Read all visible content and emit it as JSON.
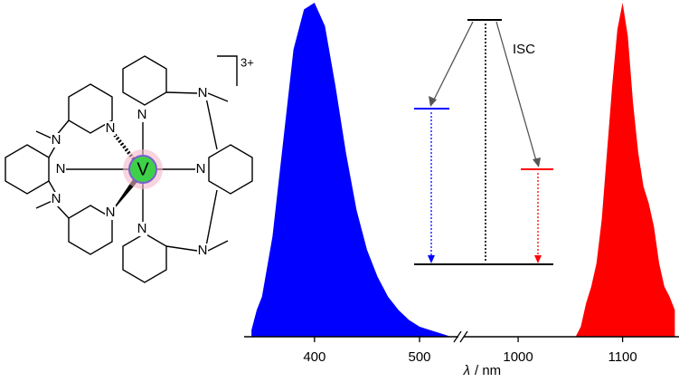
{
  "molecule": {
    "metal": "V",
    "charge": "3+",
    "atoms": [
      "N",
      "N",
      "N",
      "N",
      "N",
      "N",
      "N",
      "N",
      "N",
      "N"
    ]
  },
  "energy_diagram": {
    "label": "ISC"
  },
  "chart_data": {
    "type": "area",
    "x_label_symbol": "λ",
    "x_label_unit": "/ nm",
    "x_segments": [
      {
        "xlim": [
          333,
          537
        ],
        "xticks": [
          400,
          500
        ]
      },
      {
        "xlim": [
          948,
          1154
        ],
        "xticks": [
          1000,
          1100
        ]
      }
    ],
    "ylim": [
      0,
      1
    ],
    "series": [
      {
        "color": "#0000ff",
        "x": [
          340,
          345,
          350,
          360,
          370,
          380,
          390,
          400,
          410,
          420,
          430,
          440,
          450,
          460,
          470,
          480,
          490,
          500,
          510,
          520,
          530
        ],
        "values": [
          0.02,
          0.08,
          0.12,
          0.3,
          0.58,
          0.86,
          0.98,
          1.0,
          0.93,
          0.75,
          0.55,
          0.38,
          0.26,
          0.18,
          0.12,
          0.08,
          0.05,
          0.03,
          0.02,
          0.01,
          0.0
        ]
      },
      {
        "color": "#ff0000",
        "x": [
          1055,
          1060,
          1065,
          1070,
          1075,
          1080,
          1085,
          1090,
          1095,
          1100,
          1105,
          1110,
          1115,
          1120,
          1125,
          1130,
          1135,
          1140,
          1145,
          1150
        ],
        "values": [
          0.0,
          0.03,
          0.1,
          0.15,
          0.22,
          0.35,
          0.55,
          0.75,
          0.92,
          1.0,
          0.9,
          0.7,
          0.55,
          0.45,
          0.4,
          0.33,
          0.22,
          0.15,
          0.12,
          0.08
        ]
      }
    ]
  }
}
